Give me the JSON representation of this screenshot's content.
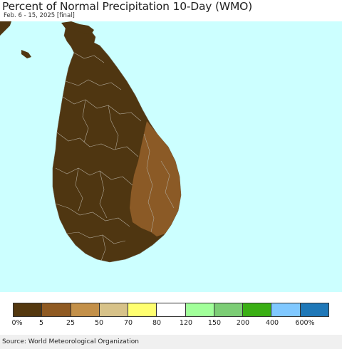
{
  "title": "Percent of Normal Precipitation 10-Day (WMO)",
  "subtitle": "Feb. 6 - 15, 2025 [final]",
  "colors": {
    "ocean": "#ccffff",
    "land_dry": "#4f3611",
    "land_moderate": "#8b5a26",
    "border": "#b0a898"
  },
  "legend": {
    "swatches": [
      {
        "color": "#54380f"
      },
      {
        "color": "#8f5a22"
      },
      {
        "color": "#c39049"
      },
      {
        "color": "#d7c289"
      },
      {
        "color": "#ffff70"
      },
      {
        "color": "#ffffff"
      },
      {
        "color": "#a1ff9a"
      },
      {
        "color": "#7ccd75"
      },
      {
        "color": "#3aaf14"
      },
      {
        "color": "#80c8ff"
      },
      {
        "color": "#1f78b8"
      }
    ],
    "ticks": [
      "0%",
      "5",
      "25",
      "50",
      "70",
      "80",
      "120",
      "150",
      "200",
      "400",
      "600%"
    ]
  },
  "source": "Source: World Meteorological Organization"
}
